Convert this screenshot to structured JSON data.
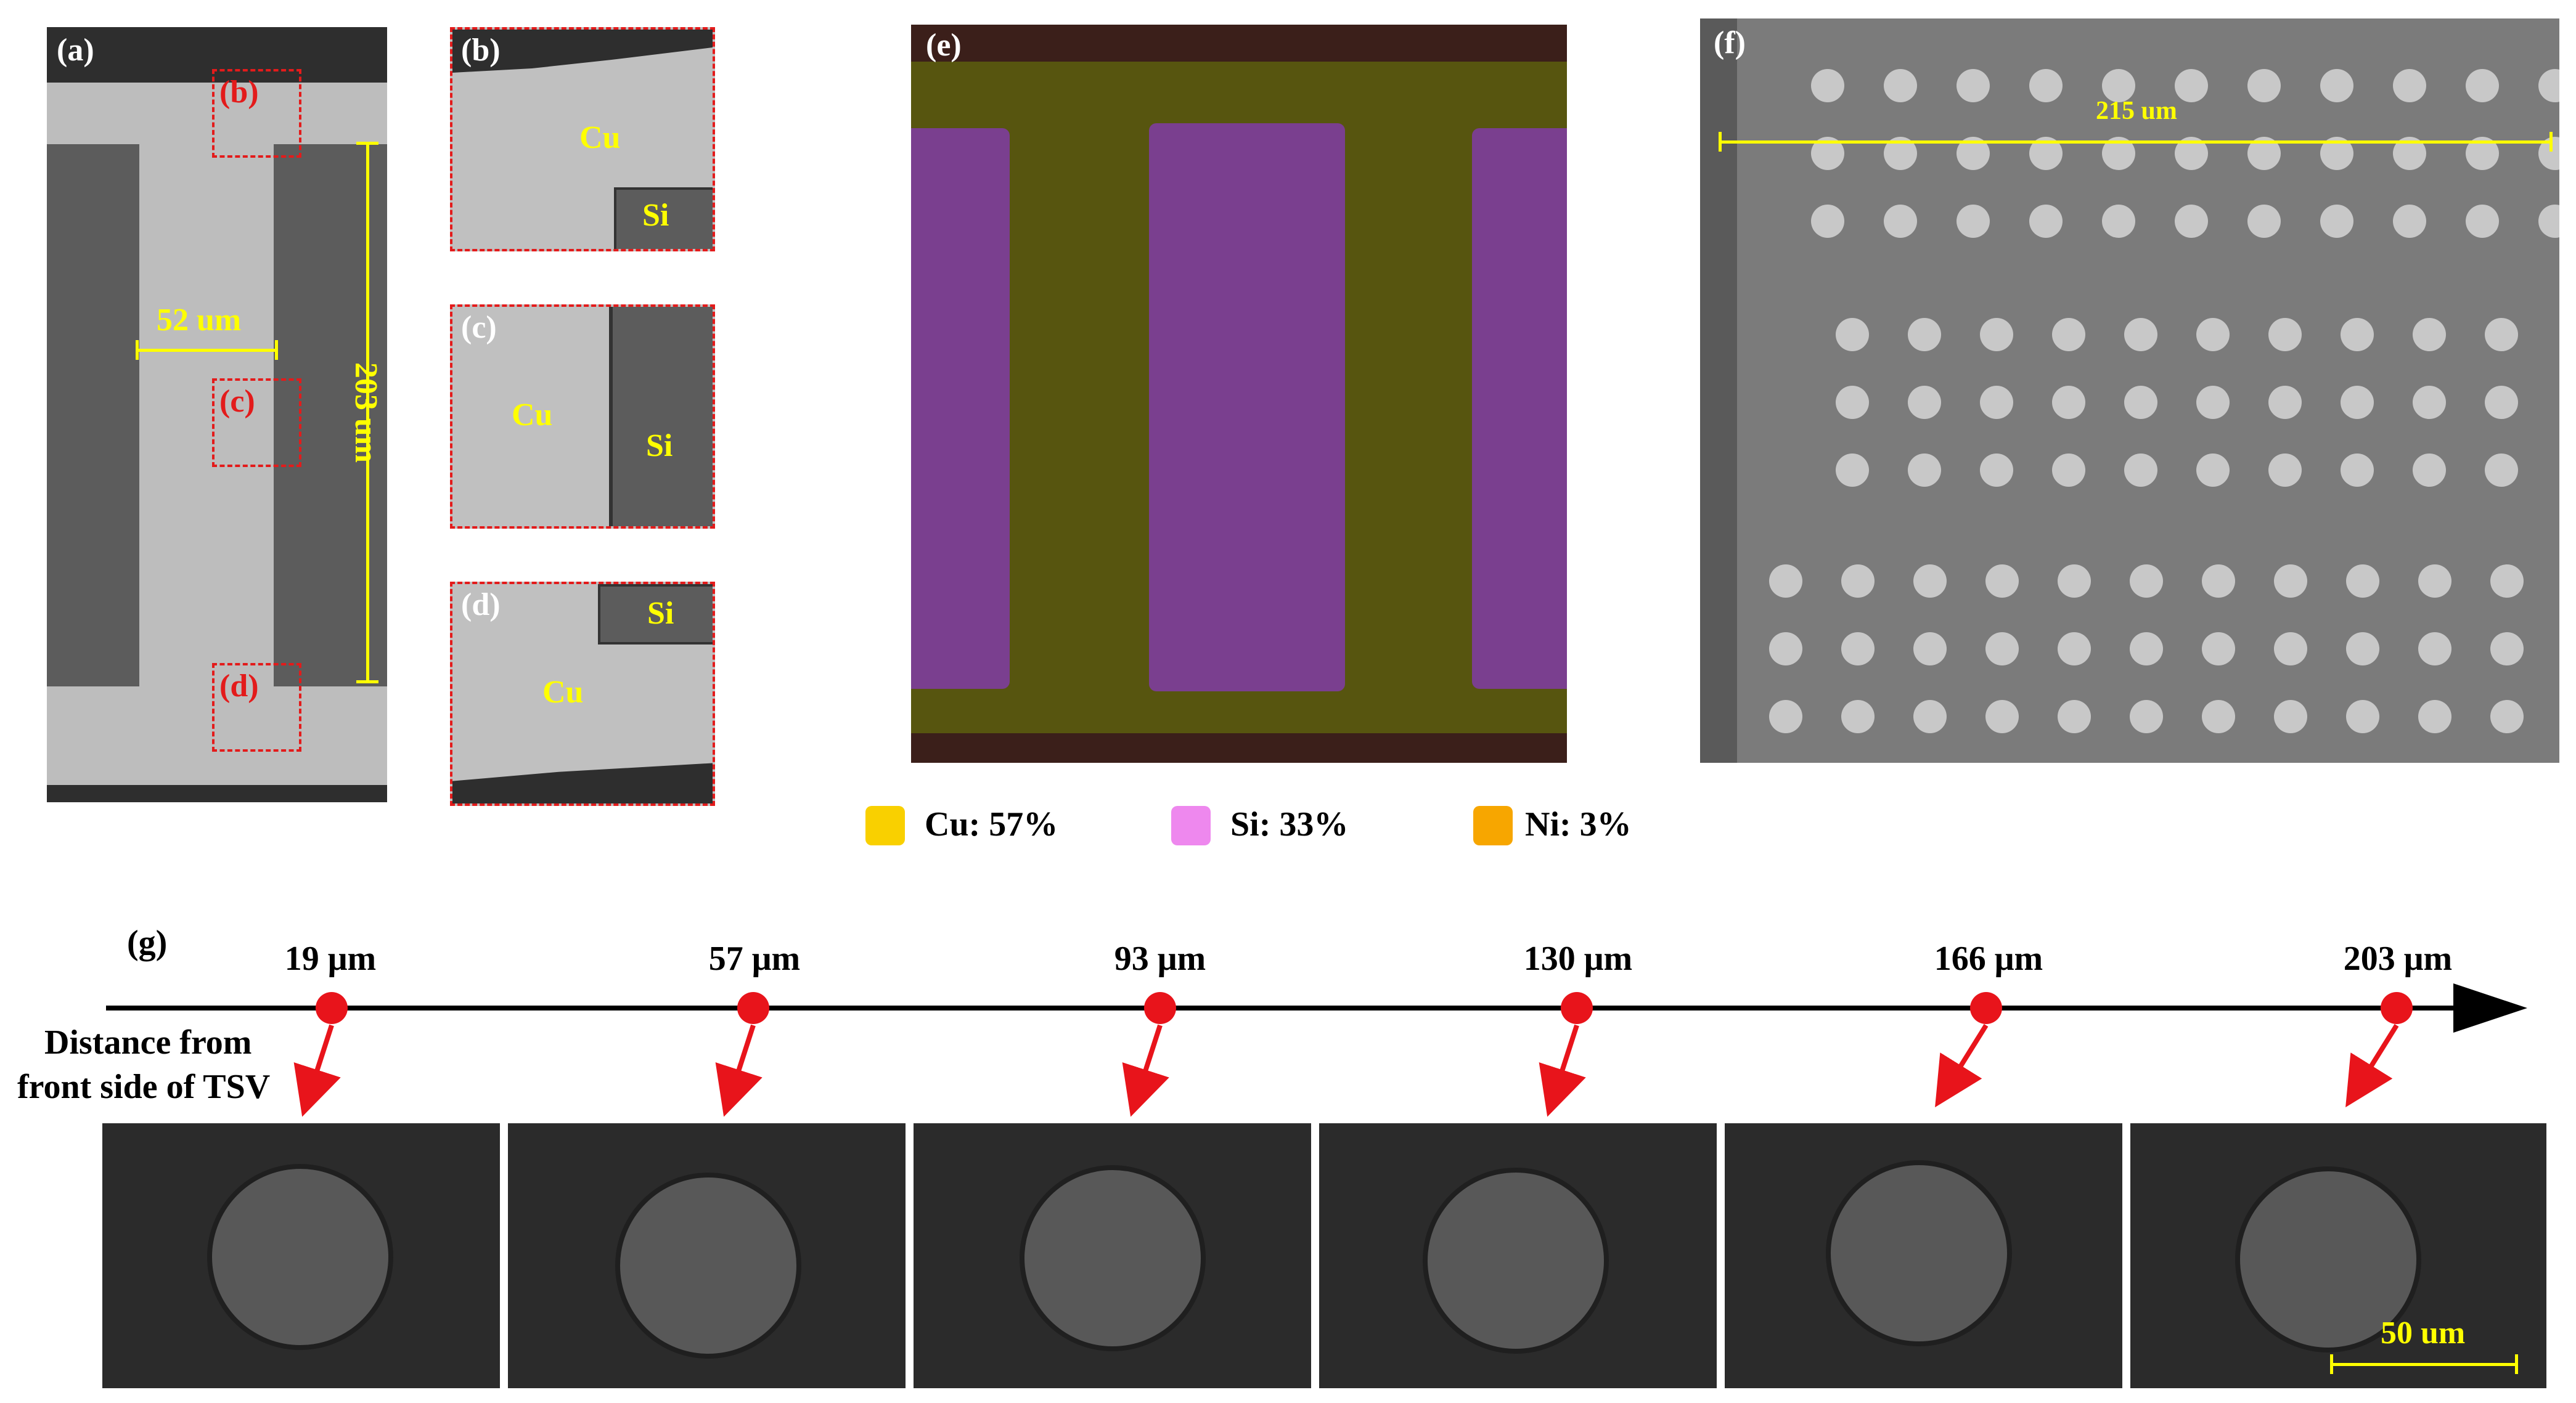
{
  "panel_a": {
    "label": "(a)",
    "width_label": "52 um",
    "height_label": "203 um",
    "boxes": [
      "(b)",
      "(c)",
      "(d)"
    ]
  },
  "panel_b": {
    "label": "(b)",
    "cu": "Cu",
    "si": "Si"
  },
  "panel_c": {
    "label": "(c)",
    "cu": "Cu",
    "si": "Si"
  },
  "panel_d": {
    "label": "(d)",
    "cu": "Cu",
    "si": "Si"
  },
  "panel_e": {
    "label": "(e)"
  },
  "panel_f": {
    "label": "(f)",
    "scale_label": "215 um"
  },
  "legend": [
    {
      "text": "Cu: 57%",
      "color": "#f9d000"
    },
    {
      "text": "Si: 33%",
      "color": "#ee88ee"
    },
    {
      "text": "Ni: 3%",
      "color": "#f7a600"
    }
  ],
  "panel_g": {
    "label": "(g)",
    "axis_caption_line1": "Distance from",
    "axis_caption_line2": "front side of TSV",
    "marks": [
      "19 μm",
      "57 μm",
      "93 μm",
      "130 μm",
      "166 μm",
      "203 μm"
    ],
    "scale_label": "50 um"
  }
}
